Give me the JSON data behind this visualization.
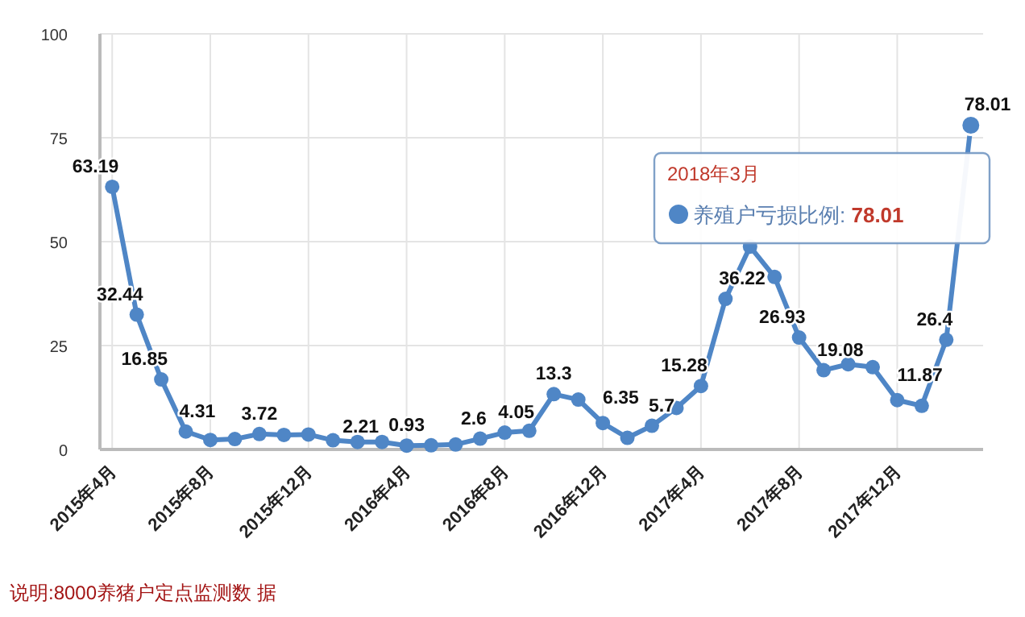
{
  "chart_data": {
    "type": "line",
    "categories": [
      "2015年4月",
      null,
      null,
      null,
      "2015年8月",
      null,
      null,
      null,
      "2015年12月",
      null,
      null,
      null,
      "2016年4月",
      null,
      null,
      null,
      "2016年8月",
      null,
      null,
      null,
      "2016年12月",
      null,
      null,
      null,
      "2017年4月",
      null,
      null,
      null,
      "2017年8月",
      null,
      null,
      null,
      "2017年12月",
      null,
      null,
      null
    ],
    "series": [
      {
        "name": "养殖户亏损比例:",
        "color": "#4f86c6",
        "values": [
          63.19,
          32.44,
          16.85,
          4.31,
          2.3,
          2.5,
          3.72,
          3.5,
          3.6,
          2.21,
          1.8,
          1.8,
          0.93,
          1.0,
          1.2,
          2.6,
          4.05,
          4.5,
          13.3,
          12,
          6.35,
          2.8,
          5.7,
          10,
          15.28,
          36.22,
          48.8,
          41.5,
          26.93,
          19.08,
          20.5,
          19.8,
          11.87,
          10.5,
          26.4,
          78.01
        ],
        "value_labels": [
          "63.19",
          "32.44",
          "16.85",
          "4.31",
          null,
          null,
          "3.72",
          null,
          null,
          "2.21",
          null,
          null,
          "0.93",
          null,
          null,
          "2.6",
          "4.05",
          null,
          "13.3",
          null,
          "6.35",
          null,
          "5.7",
          null,
          "15.28",
          "36.22",
          null,
          null,
          "26.93",
          "19.08",
          null,
          null,
          "11.87",
          null,
          "26.4",
          "78.01"
        ]
      }
    ],
    "ylim": [
      0,
      100
    ],
    "yticks": [
      0,
      25,
      50,
      75,
      100
    ],
    "grid": true,
    "marker": "circle",
    "line_style": "solid",
    "annotations": [
      "2018年3月",
      "说明:8000养猪户定点监测数 据"
    ]
  }
}
